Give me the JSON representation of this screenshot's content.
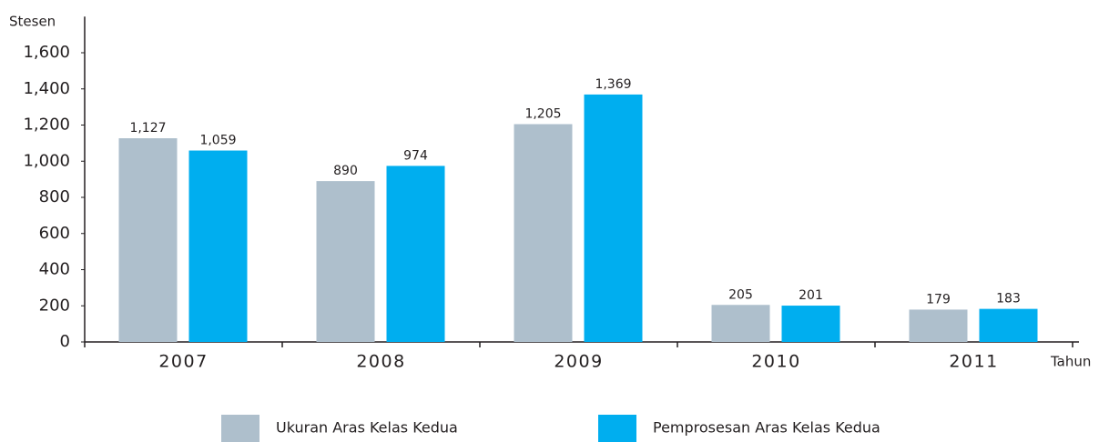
{
  "chart_data": {
    "type": "bar",
    "y_label": "Stesen",
    "x_label": "Tahun",
    "categories": [
      "2007",
      "2008",
      "2009",
      "2010",
      "2011"
    ],
    "series": [
      {
        "name": "Ukuran Aras Kelas Kedua",
        "color": "#aebfcc",
        "values": [
          1127,
          890,
          1205,
          205,
          179
        ],
        "value_labels": [
          "1,127",
          "890",
          "1,205",
          "205",
          "179"
        ]
      },
      {
        "name": "Pemprosesan Aras Kelas Kedua",
        "color": "#00aeef",
        "values": [
          1059,
          974,
          1369,
          201,
          183
        ],
        "value_labels": [
          "1,059",
          "974",
          "1,369",
          "201",
          "183"
        ]
      }
    ],
    "ylim": [
      0,
      1800
    ],
    "yticks": [
      0,
      200,
      400,
      600,
      800,
      {
        "value": 1000,
        "label": "1,000"
      },
      {
        "value": 1200,
        "label": "1,200"
      },
      {
        "value": 1400,
        "label": "1,400"
      },
      {
        "value": 1600,
        "label": "1,600"
      }
    ]
  }
}
